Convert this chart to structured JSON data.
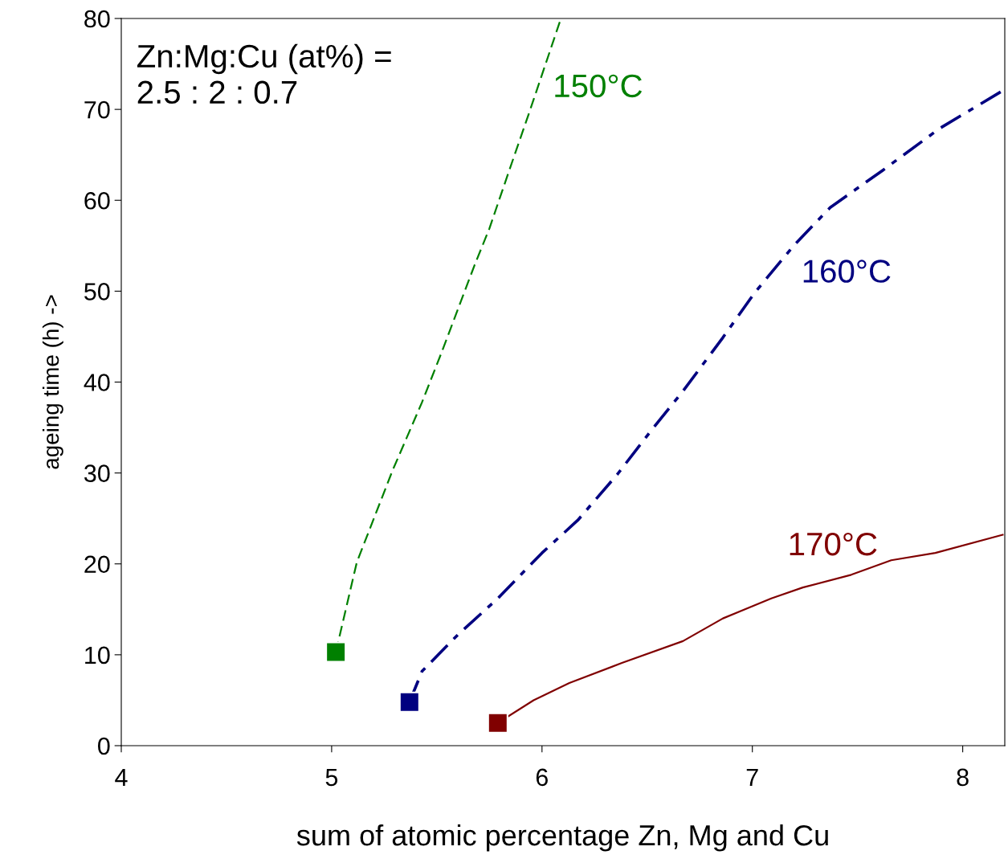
{
  "chart_data": {
    "type": "line",
    "xlabel": "sum of atomic percentage Zn, Mg and Cu",
    "ylabel": "ageing time (h) ->",
    "xlim": [
      4,
      8.2
    ],
    "xticks": [
      4,
      5,
      6,
      7,
      8
    ],
    "ylim": [
      0,
      80
    ],
    "yticks": [
      0,
      10,
      20,
      30,
      40,
      50,
      60,
      70,
      80
    ],
    "grid": false,
    "annotations": [
      "Zn:Mg:Cu (at%) =\n2.5 : 2 : 0.7"
    ],
    "series": [
      {
        "name": "150°C",
        "color": "#008000",
        "line_style": "dashed",
        "x": [
          5.02,
          5.12,
          5.29,
          5.43,
          5.52,
          5.6,
          5.68,
          5.75,
          5.84,
          5.94,
          6.09
        ],
        "values": [
          10.3,
          20.2,
          30.3,
          37.8,
          43.1,
          48.0,
          52.9,
          56.9,
          63.0,
          69.7,
          80
        ]
      },
      {
        "name": "160°C",
        "color": "#000080",
        "line_style": "dashdot",
        "x": [
          5.37,
          5.43,
          5.6,
          5.79,
          6.0,
          6.17,
          6.36,
          6.52,
          6.67,
          6.86,
          7.01,
          7.2,
          7.37,
          7.62,
          7.89,
          8.2
        ],
        "values": [
          4.8,
          8.2,
          12.2,
          16.2,
          21.2,
          24.8,
          29.9,
          34.7,
          39.0,
          44.9,
          49.8,
          55.1,
          59.2,
          63.3,
          67.9,
          72.2
        ]
      },
      {
        "name": "170°C",
        "color": "#800000",
        "line_style": "solid",
        "x": [
          5.79,
          5.96,
          6.13,
          6.38,
          6.67,
          6.86,
          7.09,
          7.24,
          7.47,
          7.66,
          7.87,
          8.19
        ],
        "values": [
          2.5,
          5.0,
          6.9,
          9.1,
          11.5,
          14.0,
          16.2,
          17.4,
          18.8,
          20.4,
          21.2,
          23.2
        ]
      },
      {
        "type": "scatter",
        "color": "#008000",
        "marker": "square",
        "x": [
          5.02
        ],
        "values": [
          10.3
        ]
      },
      {
        "type": "scatter",
        "color": "#000080",
        "marker": "square",
        "x": [
          5.37
        ],
        "values": [
          4.8
        ]
      },
      {
        "type": "scatter",
        "color": "#800000",
        "marker": "square",
        "x": [
          5.79
        ],
        "values": [
          2.5
        ]
      }
    ]
  }
}
